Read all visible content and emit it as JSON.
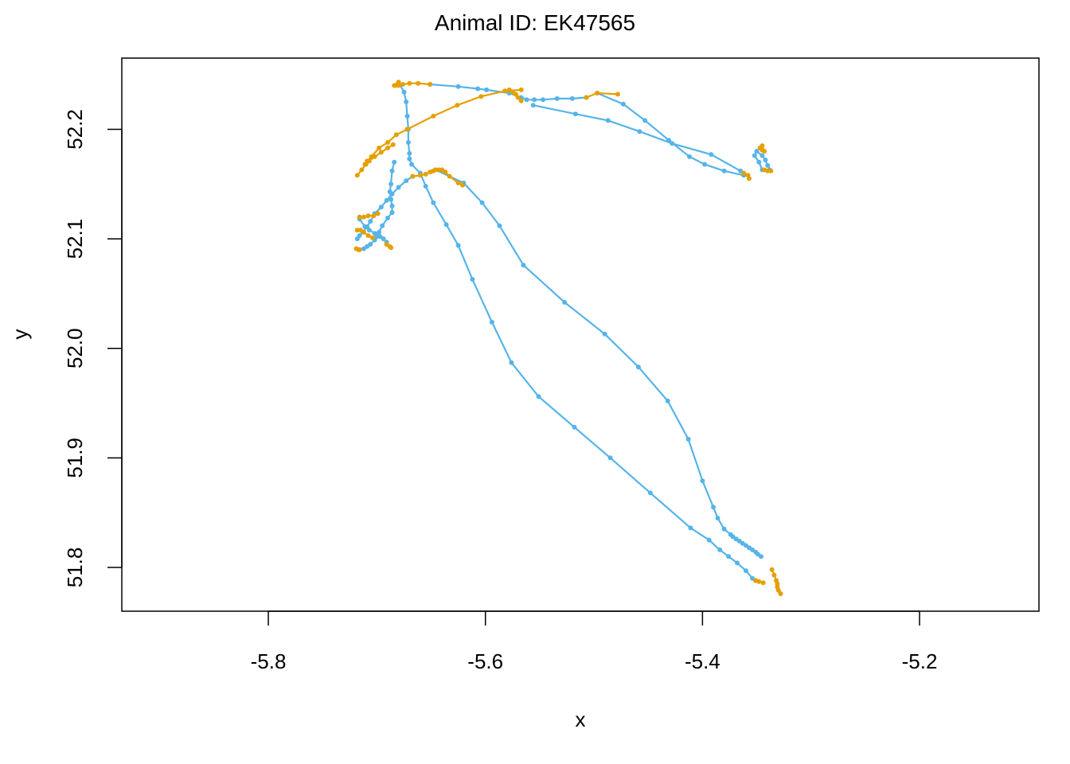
{
  "chart_data": {
    "type": "line",
    "title": "Animal ID: EK47565",
    "xlabel": "x",
    "ylabel": "y",
    "xlim": [
      -5.935,
      -5.09
    ],
    "ylim": [
      51.76,
      52.265
    ],
    "xticks": [
      -5.8,
      -5.6,
      -5.4,
      -5.2
    ],
    "xtick_labels": [
      "-5.8",
      "-5.6",
      "-5.4",
      "-5.2"
    ],
    "yticks": [
      51.8,
      51.9,
      52.0,
      52.1,
      52.2
    ],
    "ytick_labels": [
      "51.8",
      "51.9",
      "52.0",
      "52.1",
      "52.2"
    ],
    "grid": false,
    "series": [
      {
        "color": "#56B4E9",
        "segments": [
          [
            [
              -5.68,
              52.243
            ],
            [
              -5.675,
              52.234
            ],
            [
              -5.673,
              52.225
            ],
            [
              -5.672,
              52.212
            ],
            [
              -5.671,
              52.2
            ],
            [
              -5.671,
              52.188
            ],
            [
              -5.67,
              52.178
            ],
            [
              -5.67,
              52.173
            ],
            [
              -5.668,
              52.168
            ],
            [
              -5.66,
              52.16
            ],
            [
              -5.655,
              52.148
            ],
            [
              -5.648,
              52.133
            ],
            [
              -5.636,
              52.113
            ],
            [
              -5.625,
              52.094
            ],
            [
              -5.612,
              52.063
            ],
            [
              -5.594,
              52.024
            ],
            [
              -5.576,
              51.987
            ],
            [
              -5.551,
              51.956
            ],
            [
              -5.518,
              51.928
            ],
            [
              -5.485,
              51.9
            ],
            [
              -5.448,
              51.868
            ],
            [
              -5.411,
              51.836
            ],
            [
              -5.394,
              51.825
            ],
            [
              -5.384,
              51.816
            ],
            [
              -5.376,
              51.81
            ],
            [
              -5.368,
              51.804
            ],
            [
              -5.36,
              51.797
            ],
            [
              -5.354,
              51.79
            ],
            [
              -5.351,
              51.788
            ]
          ],
          [
            [
              -5.646,
              52.163
            ],
            [
              -5.62,
              52.151
            ],
            [
              -5.603,
              52.133
            ],
            [
              -5.587,
              52.112
            ],
            [
              -5.565,
              52.076
            ],
            [
              -5.527,
              52.042
            ],
            [
              -5.49,
              52.013
            ],
            [
              -5.459,
              51.983
            ],
            [
              -5.432,
              51.952
            ],
            [
              -5.413,
              51.917
            ],
            [
              -5.4,
              51.879
            ],
            [
              -5.39,
              51.855
            ],
            [
              -5.386,
              51.845
            ],
            [
              -5.38,
              51.835
            ],
            [
              -5.374,
              51.83
            ],
            [
              -5.372,
              51.828
            ],
            [
              -5.369,
              51.826
            ],
            [
              -5.366,
              51.824
            ],
            [
              -5.363,
              51.822
            ],
            [
              -5.36,
              51.82
            ],
            [
              -5.357,
              51.818
            ],
            [
              -5.354,
              51.816
            ],
            [
              -5.351,
              51.814
            ],
            [
              -5.349,
              51.812
            ],
            [
              -5.346,
              51.81
            ]
          ],
          [
            [
              -5.667,
              52.157
            ],
            [
              -5.673,
              52.153
            ],
            [
              -5.68,
              52.147
            ],
            [
              -5.686,
              52.141
            ],
            [
              -5.691,
              52.135
            ],
            [
              -5.696,
              52.129
            ],
            [
              -5.702,
              52.123
            ],
            [
              -5.706,
              52.116
            ],
            [
              -5.709,
              52.111
            ],
            [
              -5.713,
              52.106
            ],
            [
              -5.716,
              52.103
            ],
            [
              -5.718,
              52.1
            ]
          ],
          [
            [
              -5.651,
              52.241
            ],
            [
              -5.625,
              52.239
            ],
            [
              -5.607,
              52.237
            ],
            [
              -5.599,
              52.236
            ],
            [
              -5.578,
              52.233
            ],
            [
              -5.567,
              52.229
            ],
            [
              -5.562,
              52.227
            ],
            [
              -5.555,
              52.227
            ],
            [
              -5.547,
              52.227
            ],
            [
              -5.534,
              52.228
            ],
            [
              -5.52,
              52.228
            ],
            [
              -5.507,
              52.229
            ]
          ],
          [
            [
              -5.497,
              52.233
            ],
            [
              -5.473,
              52.223
            ],
            [
              -5.453,
              52.208
            ],
            [
              -5.431,
              52.19
            ],
            [
              -5.412,
              52.175
            ],
            [
              -5.398,
              52.168
            ],
            [
              -5.38,
              52.162
            ],
            [
              -5.362,
              52.158
            ]
          ],
          [
            [
              -5.556,
              52.222
            ],
            [
              -5.517,
              52.214
            ],
            [
              -5.487,
              52.208
            ],
            [
              -5.458,
              52.198
            ],
            [
              -5.428,
              52.187
            ],
            [
              -5.392,
              52.177
            ],
            [
              -5.365,
              52.162
            ]
          ],
          [
            [
              -5.345,
              52.163
            ],
            [
              -5.348,
              52.17
            ],
            [
              -5.352,
              52.176
            ],
            [
              -5.35,
              52.18
            ],
            [
              -5.345,
              52.176
            ],
            [
              -5.342,
              52.172
            ],
            [
              -5.34,
              52.167
            ],
            [
              -5.338,
              52.163
            ]
          ],
          [
            [
              -5.686,
              52.124
            ],
            [
              -5.69,
              52.119
            ],
            [
              -5.695,
              52.112
            ],
            [
              -5.698,
              52.106
            ],
            [
              -5.7,
              52.102
            ],
            [
              -5.702,
              52.099
            ],
            [
              -5.706,
              52.095
            ],
            [
              -5.709,
              52.093
            ],
            [
              -5.712,
              52.091
            ],
            [
              -5.716,
              52.09
            ]
          ],
          [
            [
              -5.716,
              52.118
            ],
            [
              -5.711,
              52.111
            ],
            [
              -5.707,
              52.108
            ],
            [
              -5.702,
              52.105
            ],
            [
              -5.697,
              52.102
            ],
            [
              -5.694,
              52.1
            ],
            [
              -5.691,
              52.097
            ]
          ],
          [
            [
              -5.684,
              52.17
            ],
            [
              -5.686,
              52.162
            ],
            [
              -5.687,
              52.15
            ],
            [
              -5.688,
              52.143
            ],
            [
              -5.687,
              52.136
            ],
            [
              -5.686,
              52.13
            ],
            [
              -5.686,
              52.124
            ]
          ]
        ]
      },
      {
        "color": "#E69F00",
        "segments": [
          [
            [
              -5.68,
              52.24
            ],
            [
              -5.676,
              52.241
            ],
            [
              -5.67,
              52.242
            ],
            [
              -5.662,
              52.242
            ],
            [
              -5.651,
              52.241
            ]
          ],
          [
            [
              -5.68,
              52.243
            ],
            [
              -5.681,
              52.241
            ],
            [
              -5.683,
              52.24
            ],
            [
              -5.684,
              52.24
            ]
          ],
          [
            [
              -5.507,
              52.229
            ],
            [
              -5.497,
              52.233
            ],
            [
              -5.478,
              52.232
            ]
          ],
          [
            [
              -5.685,
              52.186
            ],
            [
              -5.69,
              52.183
            ],
            [
              -5.696,
              52.179
            ],
            [
              -5.702,
              52.175
            ],
            [
              -5.707,
              52.171
            ],
            [
              -5.71,
              52.168
            ],
            [
              -5.714,
              52.163
            ],
            [
              -5.718,
              52.158
            ]
          ],
          [
            [
              -5.672,
              52.2
            ],
            [
              -5.682,
              52.195
            ],
            [
              -5.69,
              52.188
            ],
            [
              -5.698,
              52.183
            ],
            [
              -5.705,
              52.175
            ],
            [
              -5.709,
              52.171
            ],
            [
              -5.711,
              52.168
            ]
          ],
          [
            [
              -5.672,
              52.2
            ],
            [
              -5.648,
              52.212
            ],
            [
              -5.626,
              52.222
            ],
            [
              -5.604,
              52.23
            ],
            [
              -5.582,
              52.235
            ],
            [
              -5.567,
              52.236
            ]
          ],
          [
            [
              -5.578,
              52.236
            ],
            [
              -5.575,
              52.234
            ],
            [
              -5.572,
              52.232
            ],
            [
              -5.57,
              52.229
            ],
            [
              -5.567,
              52.226
            ]
          ],
          [
            [
              -5.667,
              52.157
            ],
            [
              -5.66,
              52.158
            ],
            [
              -5.655,
              52.159
            ],
            [
              -5.651,
              52.161
            ],
            [
              -5.648,
              52.162
            ],
            [
              -5.646,
              52.163
            ],
            [
              -5.643,
              52.163
            ],
            [
              -5.64,
              52.163
            ],
            [
              -5.637,
              52.161
            ],
            [
              -5.633,
              52.157
            ],
            [
              -5.625,
              52.151
            ],
            [
              -5.621,
              52.149
            ]
          ],
          [
            [
              -5.716,
              52.12
            ],
            [
              -5.712,
              52.12
            ],
            [
              -5.708,
              52.121
            ],
            [
              -5.703,
              52.121
            ],
            [
              -5.699,
              52.123
            ]
          ],
          [
            [
              -5.718,
              52.108
            ],
            [
              -5.715,
              52.108
            ],
            [
              -5.712,
              52.106
            ],
            [
              -5.708,
              52.103
            ],
            [
              -5.704,
              52.101
            ]
          ],
          [
            [
              -5.719,
              52.091
            ],
            [
              -5.717,
              52.09
            ],
            [
              -5.716,
              52.09
            ]
          ],
          [
            [
              -5.691,
              52.095
            ],
            [
              -5.688,
              52.093
            ],
            [
              -5.687,
              52.092
            ]
          ],
          [
            [
              -5.362,
              52.16
            ],
            [
              -5.358,
              52.158
            ],
            [
              -5.357,
              52.155
            ]
          ],
          [
            [
              -5.345,
              52.181
            ],
            [
              -5.347,
              52.183
            ],
            [
              -5.345,
              52.185
            ],
            [
              -5.343,
              52.18
            ]
          ],
          [
            [
              -5.343,
              52.163
            ],
            [
              -5.34,
              52.162
            ],
            [
              -5.337,
              52.162
            ]
          ],
          [
            [
              -5.351,
              51.788
            ],
            [
              -5.348,
              51.787
            ],
            [
              -5.344,
              51.786
            ]
          ],
          [
            [
              -5.336,
              51.798
            ],
            [
              -5.334,
              51.793
            ],
            [
              -5.332,
              51.788
            ],
            [
              -5.331,
              51.785
            ],
            [
              -5.331,
              51.782
            ],
            [
              -5.33,
              51.779
            ],
            [
              -5.328,
              51.776
            ]
          ]
        ]
      }
    ]
  }
}
